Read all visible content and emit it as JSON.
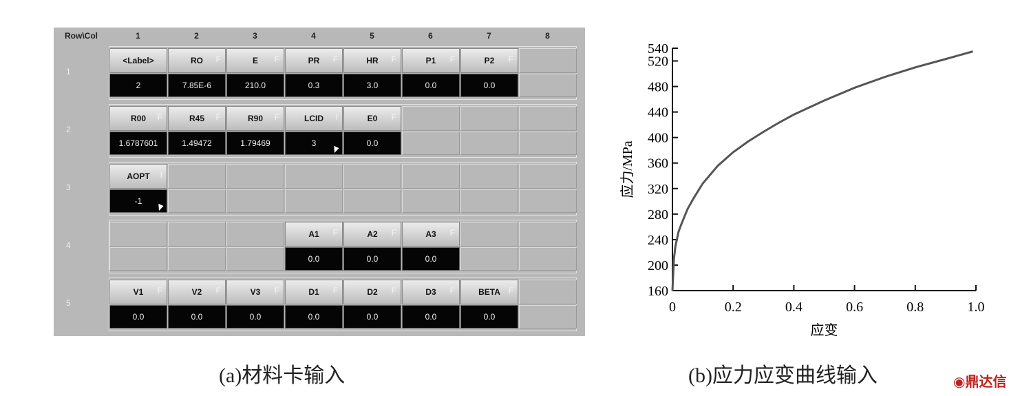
{
  "panel_a": {
    "header": [
      "Row\\Col",
      "1",
      "2",
      "3",
      "4",
      "5",
      "6",
      "7",
      "8"
    ],
    "rows": [
      {
        "label": "1",
        "cells": [
          {
            "label": "<Label>",
            "value": "2"
          },
          {
            "label": "RO",
            "flag": "F",
            "value": "7.85E-6"
          },
          {
            "label": "E",
            "flag": "F",
            "value": "210.0"
          },
          {
            "label": "PR",
            "flag": "F",
            "value": "0.3"
          },
          {
            "label": "HR",
            "flag": "F",
            "value": "3.0"
          },
          {
            "label": "P1",
            "flag": "F",
            "value": "0.0"
          },
          {
            "label": "P2",
            "flag": "F",
            "value": "0.0"
          },
          null
        ]
      },
      {
        "label": "2",
        "cells": [
          {
            "label": "R00",
            "flag": "F",
            "value": "1.6787601"
          },
          {
            "label": "R45",
            "flag": "F",
            "value": "1.49472"
          },
          {
            "label": "R90",
            "flag": "F",
            "value": "1.79469"
          },
          {
            "label": "LCID",
            "flag": "I",
            "value": "3",
            "dropdown": true
          },
          {
            "label": "E0",
            "flag": "F",
            "value": "0.0"
          },
          null,
          null,
          null
        ]
      },
      {
        "label": "3",
        "cells": [
          {
            "label": "AOPT",
            "flag": "I",
            "value": "-1",
            "dropdown": true
          },
          null,
          null,
          null,
          null,
          null,
          null,
          null
        ]
      },
      {
        "label": "4",
        "cells": [
          null,
          null,
          null,
          {
            "label": "A1",
            "flag": "F",
            "value": "0.0"
          },
          {
            "label": "A2",
            "flag": "F",
            "value": "0.0"
          },
          {
            "label": "A3",
            "flag": "F",
            "value": "0.0"
          },
          null,
          null
        ]
      },
      {
        "label": "5",
        "cells": [
          {
            "label": "V1",
            "flag": "F",
            "value": "0.0"
          },
          {
            "label": "V2",
            "flag": "F",
            "value": "0.0"
          },
          {
            "label": "V3",
            "flag": "F",
            "value": "0.0"
          },
          {
            "label": "D1",
            "flag": "F",
            "value": "0.0"
          },
          {
            "label": "D2",
            "flag": "F",
            "value": "0.0"
          },
          {
            "label": "D3",
            "flag": "F",
            "value": "0.0"
          },
          {
            "label": "BETA",
            "flag": "F",
            "value": "0.0"
          },
          null
        ]
      }
    ],
    "caption": "(a)材料卡输入"
  },
  "chart_data": {
    "type": "line",
    "xlabel": "应变",
    "ylabel": "应力/MPa",
    "x": [
      0,
      0.005,
      0.01,
      0.02,
      0.03,
      0.05,
      0.07,
      0.1,
      0.15,
      0.2,
      0.25,
      0.3,
      0.35,
      0.4,
      0.5,
      0.6,
      0.7,
      0.8,
      0.9,
      0.99
    ],
    "values": [
      160,
      210,
      230,
      252,
      265,
      288,
      305,
      328,
      356,
      377,
      394,
      409,
      423,
      436,
      458,
      478,
      495,
      510,
      523,
      535
    ],
    "color": "#555555",
    "xlim": [
      0,
      1
    ],
    "xticks": [
      0,
      0.2,
      0.4,
      0.6,
      0.8,
      {
        "value": 1,
        "label": "1.0"
      }
    ],
    "ylim": [
      160,
      540
    ],
    "yticks": [
      160,
      200,
      240,
      280,
      320,
      360,
      400,
      440,
      480,
      520,
      540
    ],
    "caption": "(b)应力应变曲线输入"
  },
  "watermark": "鼎达信"
}
